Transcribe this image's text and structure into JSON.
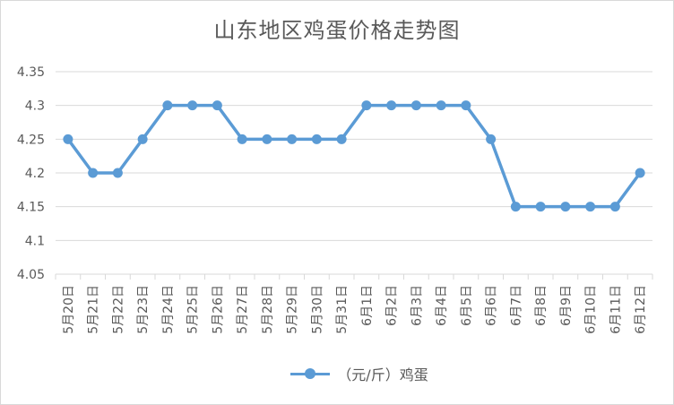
{
  "chart_data": {
    "type": "line",
    "title": "山东地区鸡蛋价格走势图",
    "xlabel": "",
    "ylabel": "",
    "categories": [
      "5月20日",
      "5月21日",
      "5月22日",
      "5月23日",
      "5月24日",
      "5月25日",
      "5月26日",
      "5月27日",
      "5月28日",
      "5月29日",
      "5月30日",
      "5月31日",
      "6月1日",
      "6月2日",
      "6月3日",
      "6月4日",
      "6月5日",
      "6月6日",
      "6月7日",
      "6月8日",
      "6月9日",
      "6月10日",
      "6月11日",
      "6月12日"
    ],
    "series": [
      {
        "name": "（元/斤）鸡蛋",
        "color": "#5b9bd5",
        "values": [
          4.25,
          4.2,
          4.2,
          4.25,
          4.3,
          4.3,
          4.3,
          4.25,
          4.25,
          4.25,
          4.25,
          4.25,
          4.3,
          4.3,
          4.3,
          4.3,
          4.3,
          4.25,
          4.15,
          4.15,
          4.15,
          4.15,
          4.15,
          4.2
        ]
      }
    ],
    "yticks": [
      "4.05",
      "4.1",
      "4.15",
      "4.2",
      "4.25",
      "4.3",
      "4.35"
    ],
    "ylim": [
      4.05,
      4.35
    ],
    "grid": true,
    "legend_position": "bottom"
  }
}
